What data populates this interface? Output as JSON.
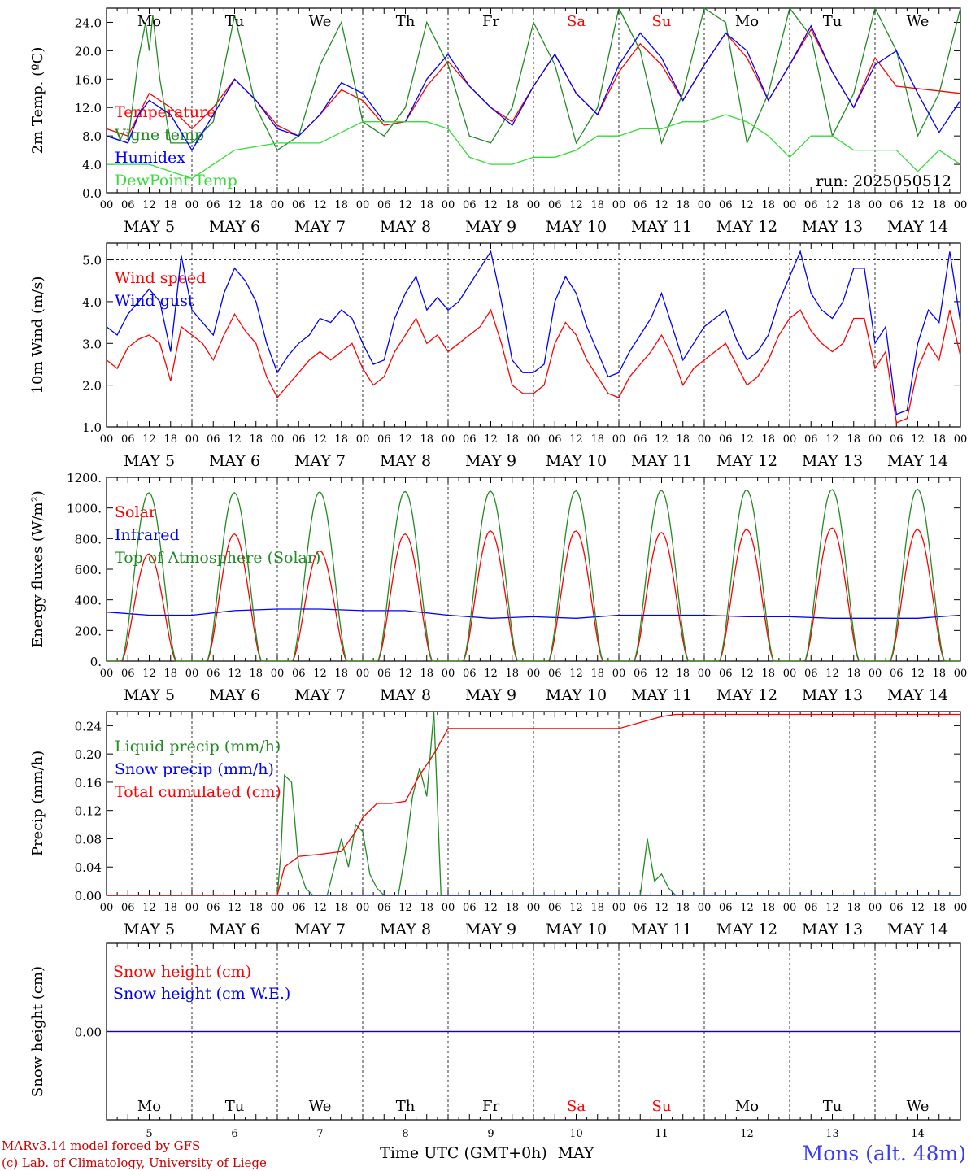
{
  "colors": {
    "red": "#ff0000",
    "green": "#228b22",
    "blue": "#0000ff",
    "lime": "#33dd33",
    "darkred": "#cc0000"
  },
  "x_axis": {
    "hours": [
      "00",
      "06",
      "12",
      "18"
    ],
    "final_hour": "00",
    "dates": [
      "MAY 5",
      "MAY 6",
      "MAY 7",
      "MAY 8",
      "MAY 9",
      "MAY 10",
      "MAY 11",
      "MAY 12",
      "MAY 13",
      "MAY 14"
    ],
    "day_names": [
      {
        "name": "Mo",
        "weekend": false
      },
      {
        "name": "Tu",
        "weekend": false
      },
      {
        "name": "We",
        "weekend": false
      },
      {
        "name": "Th",
        "weekend": false
      },
      {
        "name": "Fr",
        "weekend": false
      },
      {
        "name": "Sa",
        "weekend": true
      },
      {
        "name": "Su",
        "weekend": true
      },
      {
        "name": "Mo",
        "weekend": false
      },
      {
        "name": "Tu",
        "weekend": false
      },
      {
        "name": "We",
        "weekend": false
      }
    ],
    "day_numbers": [
      "5",
      "6",
      "7",
      "8",
      "9",
      "10",
      "11",
      "12",
      "13",
      "14"
    ],
    "label": "Time UTC (GMT+0h)",
    "month": "MAY"
  },
  "footer": {
    "model": "MARv3.14 model forced by GFS",
    "credit": "(c) Lab. of Climatology, University of Liege",
    "station": "Mons (alt. 48m)"
  },
  "chart_data": [
    {
      "type": "line",
      "ylabel": "2m Temp. (ºC)",
      "ylim": [
        0,
        26
      ],
      "yticks": [
        "0.0",
        "4.0",
        "8.0",
        "12.0",
        "16.0",
        "20.0",
        "24.0"
      ],
      "annotation": "run: 2025050512",
      "series": [
        {
          "name": "Temperature",
          "color": "red",
          "x_hours": [
            0,
            6,
            9,
            12,
            15,
            18,
            24,
            30,
            36,
            42,
            48,
            54,
            60,
            66,
            72,
            78,
            84,
            90,
            96,
            102,
            108,
            114,
            120,
            126,
            132,
            138,
            144,
            150,
            156,
            162,
            168,
            174,
            180,
            186,
            192,
            198,
            204,
            210,
            216,
            222,
            240
          ],
          "values": [
            9,
            8,
            11,
            14,
            13,
            12,
            9,
            12,
            16,
            13,
            9.5,
            8,
            11,
            14.5,
            13,
            9.5,
            10,
            15,
            18.5,
            15,
            12,
            10,
            15,
            19.5,
            14,
            11,
            17,
            21,
            18,
            13,
            18,
            22.5,
            19,
            13,
            18,
            23,
            17,
            12,
            19,
            15,
            14
          ]
        },
        {
          "name": "Vigne temp",
          "color": "green",
          "x_hours": [
            0,
            6,
            9,
            11,
            12,
            13,
            15,
            18,
            24,
            30,
            36,
            42,
            48,
            54,
            60,
            66,
            72,
            78,
            84,
            90,
            96,
            102,
            108,
            114,
            120,
            126,
            132,
            138,
            144,
            150,
            156,
            162,
            168,
            174,
            180,
            186,
            192,
            198,
            204,
            210,
            216,
            222,
            228,
            234,
            240
          ],
          "values": [
            8,
            7,
            19,
            24,
            20,
            25,
            16,
            7,
            7,
            10,
            25,
            12,
            6,
            8,
            18,
            24,
            10,
            8,
            12,
            24,
            18,
            8,
            7,
            12,
            24,
            18,
            7,
            12,
            26,
            20,
            7,
            14,
            26,
            24,
            7,
            14,
            26,
            22,
            8,
            14,
            26,
            20,
            8,
            14,
            26
          ]
        },
        {
          "name": "Humidex",
          "color": "blue",
          "x_hours": [
            0,
            6,
            9,
            12,
            15,
            18,
            24,
            30,
            36,
            42,
            48,
            54,
            60,
            66,
            72,
            78,
            84,
            90,
            96,
            102,
            108,
            114,
            120,
            126,
            132,
            138,
            144,
            150,
            156,
            162,
            168,
            174,
            180,
            186,
            192,
            198,
            204,
            210,
            216,
            222,
            228,
            234,
            240
          ],
          "values": [
            8,
            7,
            11,
            13,
            12,
            11,
            6,
            11,
            16,
            13,
            9,
            8,
            11,
            15.5,
            14,
            10,
            10,
            16,
            19.5,
            15,
            12,
            9.5,
            15,
            19.5,
            14,
            11,
            18,
            22.5,
            19,
            13,
            18,
            22.5,
            20,
            13,
            18,
            23.5,
            17,
            12,
            18,
            20,
            14,
            8.5,
            13
          ]
        },
        {
          "name": "DewPoint Temp",
          "color": "lime",
          "x_hours": [
            0,
            12,
            24,
            36,
            48,
            60,
            72,
            84,
            90,
            96,
            102,
            108,
            114,
            120,
            126,
            132,
            138,
            144,
            150,
            156,
            162,
            168,
            174,
            180,
            186,
            192,
            198,
            204,
            210,
            216,
            222,
            228,
            234,
            240
          ],
          "values": [
            4,
            4,
            2,
            6,
            7,
            7,
            10,
            10,
            10,
            9,
            5,
            4,
            4,
            5,
            5,
            6,
            8,
            8,
            9,
            9,
            10,
            10,
            11,
            10,
            8,
            5,
            8,
            8,
            6,
            6,
            6,
            3,
            6,
            4
          ]
        }
      ]
    },
    {
      "type": "line",
      "ylabel": "10m Wind (m/s)",
      "ylim": [
        1,
        5.4
      ],
      "yticks": [
        "1.0",
        "2.0",
        "3.0",
        "4.0",
        "5.0"
      ],
      "ref_line": 5.0,
      "series": [
        {
          "name": "Wind speed",
          "color": "red",
          "x_hours": [
            0,
            3,
            6,
            9,
            12,
            15,
            18,
            21,
            24,
            27,
            30,
            33,
            36,
            39,
            42,
            45,
            48,
            51,
            54,
            57,
            60,
            63,
            66,
            69,
            72,
            75,
            78,
            81,
            84,
            87,
            90,
            93,
            96,
            99,
            102,
            105,
            108,
            111,
            114,
            117,
            120,
            123,
            126,
            129,
            132,
            135,
            138,
            141,
            144,
            147,
            150,
            153,
            156,
            159,
            162,
            165,
            168,
            171,
            174,
            177,
            180,
            183,
            186,
            189,
            192,
            195,
            198,
            201,
            204,
            207,
            210,
            213,
            216,
            219,
            222,
            225,
            228,
            231,
            234,
            237,
            240
          ],
          "values": [
            2.6,
            2.4,
            2.9,
            3.1,
            3.2,
            3.0,
            2.1,
            3.4,
            3.2,
            3.0,
            2.6,
            3.2,
            3.7,
            3.3,
            3.0,
            2.2,
            1.7,
            2.0,
            2.3,
            2.6,
            2.8,
            2.6,
            2.8,
            3.0,
            2.4,
            2.0,
            2.2,
            2.8,
            3.2,
            3.6,
            3.0,
            3.2,
            2.8,
            3.0,
            3.2,
            3.4,
            3.8,
            3.0,
            2.0,
            1.8,
            1.8,
            2.0,
            3.0,
            3.5,
            3.2,
            2.6,
            2.2,
            1.8,
            1.7,
            2.2,
            2.5,
            2.8,
            3.2,
            2.7,
            2.0,
            2.4,
            2.6,
            2.8,
            3.0,
            2.5,
            2.0,
            2.2,
            2.6,
            3.2,
            3.6,
            3.8,
            3.3,
            3.0,
            2.8,
            3.0,
            3.6,
            3.6,
            2.4,
            2.8,
            1.1,
            1.2,
            2.4,
            3.0,
            2.6,
            3.8,
            2.7
          ]
        },
        {
          "name": "Wind gust",
          "color": "blue",
          "x_hours": [
            0,
            3,
            6,
            9,
            12,
            15,
            18,
            21,
            24,
            27,
            30,
            33,
            36,
            39,
            42,
            45,
            48,
            51,
            54,
            57,
            60,
            63,
            66,
            69,
            72,
            75,
            78,
            81,
            84,
            87,
            90,
            93,
            96,
            99,
            102,
            105,
            108,
            111,
            114,
            117,
            120,
            123,
            126,
            129,
            132,
            135,
            138,
            141,
            144,
            147,
            150,
            153,
            156,
            159,
            162,
            165,
            168,
            171,
            174,
            177,
            180,
            183,
            186,
            189,
            192,
            195,
            198,
            201,
            204,
            207,
            210,
            213,
            216,
            219,
            222,
            225,
            228,
            231,
            234,
            237,
            240
          ],
          "values": [
            3.4,
            3.2,
            3.7,
            4.0,
            4.3,
            4.0,
            2.8,
            5.1,
            3.8,
            3.5,
            3.2,
            4.2,
            4.8,
            4.5,
            4.0,
            3.0,
            2.3,
            2.7,
            3.0,
            3.2,
            3.6,
            3.5,
            3.8,
            3.6,
            3.0,
            2.5,
            2.6,
            3.6,
            4.2,
            4.6,
            3.8,
            4.1,
            3.8,
            4.0,
            4.4,
            4.8,
            5.2,
            4.0,
            2.6,
            2.3,
            2.3,
            2.5,
            4.0,
            4.6,
            4.2,
            3.4,
            2.8,
            2.2,
            2.3,
            2.8,
            3.2,
            3.6,
            4.2,
            3.4,
            2.6,
            3.0,
            3.4,
            3.6,
            3.8,
            3.1,
            2.6,
            2.8,
            3.2,
            4.0,
            4.6,
            5.2,
            4.2,
            3.8,
            3.6,
            4.0,
            4.8,
            4.8,
            3.0,
            3.4,
            1.3,
            1.4,
            3.0,
            3.8,
            3.5,
            5.2,
            3.5
          ]
        }
      ]
    },
    {
      "type": "line",
      "ylabel": "Energy fluxes (W/m²)",
      "ylim": [
        0,
        1200
      ],
      "yticks": [
        "0.",
        "200.",
        "400.",
        "600.",
        "800.",
        "1000.",
        "1200."
      ],
      "series": [
        {
          "name": "Solar",
          "color": "red",
          "peaks": [
            700,
            830,
            720,
            830,
            850,
            850,
            840,
            860,
            870,
            860
          ]
        },
        {
          "name": "Infrared",
          "color": "blue",
          "x_hours": [
            0,
            12,
            24,
            36,
            48,
            60,
            72,
            84,
            96,
            108,
            120,
            132,
            144,
            156,
            168,
            180,
            192,
            204,
            216,
            228,
            240
          ],
          "values": [
            320,
            300,
            300,
            330,
            340,
            340,
            330,
            330,
            300,
            280,
            290,
            280,
            300,
            300,
            300,
            290,
            290,
            280,
            280,
            280,
            300
          ]
        },
        {
          "name": "Top of Atmosphere (Solar)",
          "color": "green",
          "peaks": [
            1100,
            1100,
            1105,
            1108,
            1110,
            1112,
            1115,
            1118,
            1120,
            1123
          ]
        }
      ]
    },
    {
      "type": "line",
      "ylabel": "Precip (mm/h)",
      "ylim": [
        0,
        0.26
      ],
      "yticks": [
        "0.00",
        "0.04",
        "0.08",
        "0.12",
        "0.16",
        "0.20",
        "0.24"
      ],
      "series": [
        {
          "name": "Liquid precip (mm/h)",
          "color": "green",
          "x_hours": [
            0,
            48,
            49,
            50,
            52,
            54,
            56,
            58,
            62,
            66,
            68,
            70,
            72,
            74,
            76,
            78,
            80,
            82,
            84,
            86,
            88,
            90,
            92,
            94,
            96,
            98,
            100,
            144,
            150,
            152,
            154,
            156,
            158,
            160,
            240
          ],
          "values": [
            0,
            0,
            0.06,
            0.17,
            0.16,
            0.04,
            0.01,
            0,
            0,
            0.08,
            0.04,
            0.1,
            0.09,
            0.03,
            0.01,
            0,
            0,
            0,
            0.06,
            0.14,
            0.18,
            0.14,
            0.26,
            0,
            0,
            0,
            0,
            0,
            0,
            0.08,
            0.02,
            0.03,
            0.01,
            0,
            0
          ]
        },
        {
          "name": "Snow precip (mm/h)",
          "color": "blue",
          "x_hours": [
            0,
            240
          ],
          "values": [
            0,
            0
          ]
        },
        {
          "name": "Total cumulated (cm)",
          "color": "red",
          "x_hours": [
            0,
            48,
            50,
            54,
            60,
            66,
            70,
            72,
            76,
            80,
            84,
            88,
            92,
            96,
            100,
            144,
            156,
            160,
            240
          ],
          "values": [
            0,
            0,
            0.04,
            0.055,
            0.058,
            0.062,
            0.09,
            0.11,
            0.13,
            0.13,
            0.133,
            0.17,
            0.2,
            0.236,
            0.236,
            0.236,
            0.253,
            0.256,
            0.256
          ]
        }
      ]
    },
    {
      "type": "line",
      "ylabel": "Snow height (cm)",
      "ylim": [
        -1,
        1
      ],
      "yticks": [
        "0.00"
      ],
      "series": [
        {
          "name": "Snow height (cm)",
          "color": "red",
          "x_hours": [
            0,
            240
          ],
          "values": [
            0,
            0
          ]
        },
        {
          "name": "Snow height (cm W.E.)",
          "color": "blue",
          "x_hours": [
            0,
            240
          ],
          "values": [
            0,
            0
          ]
        }
      ]
    }
  ]
}
